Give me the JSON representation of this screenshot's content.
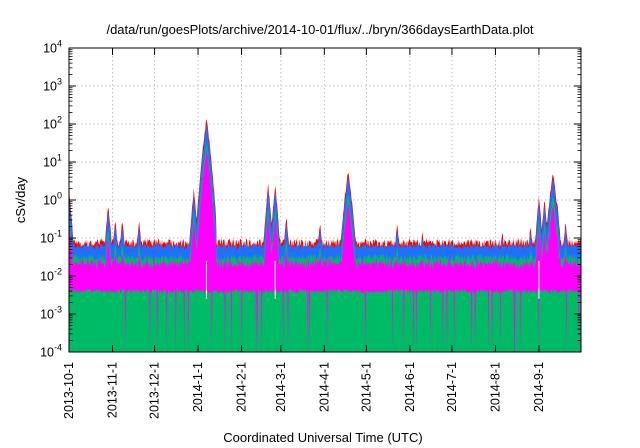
{
  "chart_data": {
    "type": "area",
    "title": "/data/run/goesPlots/archive/2014-10-01/flux/../bryn/366daysEarthData.plot",
    "xlabel": "Coordinated Universal Time (UTC)",
    "ylabel": "cSv/day",
    "y_scale": "log",
    "ylim_exp": [
      -4,
      4
    ],
    "y_tick_labels": [
      {
        "exp": -4,
        "base": "10",
        "sup": "-4"
      },
      {
        "exp": -3,
        "base": "10",
        "sup": "-3"
      },
      {
        "exp": -2,
        "base": "10",
        "sup": "-2"
      },
      {
        "exp": -1,
        "base": "10",
        "sup": "-1"
      },
      {
        "exp": 0,
        "base": "10",
        "sup": "0"
      },
      {
        "exp": 1,
        "base": "10",
        "sup": "1"
      },
      {
        "exp": 2,
        "base": "10",
        "sup": "2"
      },
      {
        "exp": 3,
        "base": "10",
        "sup": "3"
      },
      {
        "exp": 4,
        "base": "10",
        "sup": "4"
      }
    ],
    "xlim": [
      "2013-10-01",
      "2014-10-01"
    ],
    "x_ticks": [
      "2013-10-1",
      "2013-11-1",
      "2013-12-1",
      "2014-1-1",
      "2014-2-1",
      "2014-3-1",
      "2014-4-1",
      "2014-5-1",
      "2014-6-1",
      "2014-7-1",
      "2014-8-1",
      "2014-9-1"
    ],
    "grid": true,
    "series_colors": [
      "#ff0000",
      "#00bb66",
      "#2070ff",
      "#ff00ff"
    ],
    "red_envelope_peaks": [
      {
        "date": "2013-10-01",
        "value": 2.0
      },
      {
        "date": "2013-10-29",
        "value": 0.75
      },
      {
        "date": "2013-11-03",
        "value": 0.3
      },
      {
        "date": "2013-11-08",
        "value": 0.3
      },
      {
        "date": "2013-11-20",
        "value": 0.28
      },
      {
        "date": "2013-12-29",
        "value": 2.0
      },
      {
        "date": "2014-01-07",
        "value": 140
      },
      {
        "date": "2014-02-20",
        "value": 2.5
      },
      {
        "date": "2014-02-25",
        "value": 2.5
      },
      {
        "date": "2014-03-05",
        "value": 0.35
      },
      {
        "date": "2014-03-29",
        "value": 0.25
      },
      {
        "date": "2014-04-18",
        "value": 6.0
      },
      {
        "date": "2014-05-23",
        "value": 0.25
      },
      {
        "date": "2014-06-10",
        "value": 0.15
      },
      {
        "date": "2014-08-06",
        "value": 0.15
      },
      {
        "date": "2014-08-26",
        "value": 0.2
      },
      {
        "date": "2014-09-01",
        "value": 1.2
      },
      {
        "date": "2014-09-05",
        "value": 1.0
      },
      {
        "date": "2014-09-11",
        "value": 5.5
      },
      {
        "date": "2014-09-14",
        "value": 0.9
      },
      {
        "date": "2014-09-20",
        "value": 0.25
      }
    ],
    "baselines": {
      "red": 0.075,
      "blue": 0.06,
      "green": 0.03,
      "magenta_top": 0.02,
      "magenta_floor": 0.004
    }
  }
}
